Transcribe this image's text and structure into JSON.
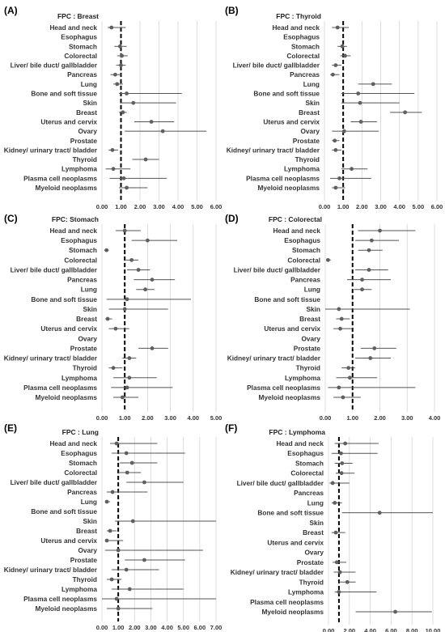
{
  "chart_data": [
    {
      "panel": "(A)",
      "title": "FPC : Breast",
      "type": "forest",
      "xlim": [
        0,
        6
      ],
      "xticks": [
        "0.00",
        "1.00",
        "2.00",
        "3.00",
        "4.00",
        "5.00",
        "6.00"
      ],
      "reference_x": 1,
      "categories": [
        "Head and neck",
        "Esophagus",
        "Stomach",
        "Colorectal",
        "Liver/ bile duct/ gallbladder",
        "Pancreas",
        "Lung",
        "Bone and soft tissue",
        "Skin",
        "Breast",
        "Uterus and cervix",
        "Ovary",
        "Prostate",
        "Kidney/ urinary tract/ bladder",
        "Thyroid",
        "Lymphoma",
        "Plasma cell neoplasms",
        "Myeloid neoplasms"
      ],
      "points": [
        {
          "est": 0.5,
          "lo": 0.3,
          "hi": 1.25
        },
        null,
        {
          "est": 0.95,
          "lo": 0.65,
          "hi": 1.3
        },
        {
          "est": 1.05,
          "lo": 0.8,
          "hi": 1.35
        },
        {
          "est": 1.0,
          "lo": 0.75,
          "hi": 1.25
        },
        {
          "est": 0.7,
          "lo": 0.45,
          "hi": 1.05
        },
        {
          "est": 0.8,
          "lo": 0.6,
          "hi": 1.1
        },
        {
          "est": 1.3,
          "lo": 0.9,
          "hi": 4.2
        },
        {
          "est": 1.65,
          "lo": 0.95,
          "hi": 3.9
        },
        {
          "est": 1.1,
          "lo": 0.9,
          "hi": 1.3
        },
        {
          "est": 2.6,
          "lo": 1.7,
          "hi": 3.8
        },
        {
          "est": 3.2,
          "lo": 1.2,
          "hi": 5.5
        },
        null,
        {
          "est": 0.55,
          "lo": 0.35,
          "hi": 0.85
        },
        {
          "est": 2.3,
          "lo": 1.6,
          "hi": 3.0
        },
        {
          "est": 0.6,
          "lo": 0.2,
          "hi": 1.5
        },
        {
          "est": 1.15,
          "lo": 0.4,
          "hi": 3.4
        },
        {
          "est": 1.3,
          "lo": 0.9,
          "hi": 2.4
        }
      ]
    },
    {
      "panel": "(B)",
      "title": "FPC : Thyroid",
      "type": "forest",
      "xlim": [
        0,
        6
      ],
      "xticks": [
        "0.00",
        "1.00",
        "2.00",
        "3.00",
        "4.00",
        "5.00",
        "6.00"
      ],
      "reference_x": 1,
      "categories": [
        "Head and neck",
        "Esophagus",
        "Stomach",
        "Colorectal",
        "Liver/ bile duct/ gallbladder",
        "Pancreas",
        "Lung",
        "Bone and soft tissue",
        "Skin",
        "Breast",
        "Uterus and cervix",
        "Ovary",
        "Prostate",
        "Kidney/ urinary tract/ bladder",
        "Thyroid",
        "Lymphoma",
        "Plasma cell neoplasms",
        "Myeloid neoplasms"
      ],
      "points": [
        {
          "est": 0.7,
          "lo": 0.4,
          "hi": 1.3
        },
        null,
        {
          "est": 0.95,
          "lo": 0.7,
          "hi": 1.2
        },
        {
          "est": 1.1,
          "lo": 0.85,
          "hi": 1.4
        },
        {
          "est": 0.6,
          "lo": 0.4,
          "hi": 0.9
        },
        {
          "est": 0.45,
          "lo": 0.3,
          "hi": 0.8
        },
        {
          "est": 2.6,
          "lo": 1.8,
          "hi": 3.6
        },
        {
          "est": 1.8,
          "lo": 0.9,
          "hi": 4.8
        },
        {
          "est": 1.9,
          "lo": 0.9,
          "hi": 4.0
        },
        {
          "est": 4.3,
          "lo": 3.5,
          "hi": 5.2
        },
        {
          "est": 1.95,
          "lo": 1.4,
          "hi": 2.8
        },
        {
          "est": 1.05,
          "lo": 0.4,
          "hi": 2.9
        },
        {
          "est": 0.55,
          "lo": 0.4,
          "hi": 0.8
        },
        {
          "est": 0.6,
          "lo": 0.4,
          "hi": 0.9
        },
        null,
        {
          "est": 1.45,
          "lo": 0.9,
          "hi": 2.3
        },
        {
          "est": 0.8,
          "lo": 0.3,
          "hi": 2.5
        },
        {
          "est": 0.6,
          "lo": 0.4,
          "hi": 1.1
        }
      ]
    },
    {
      "panel": "(C)",
      "title": "FPC: Stomach",
      "type": "forest",
      "xlim": [
        0,
        5
      ],
      "xticks": [
        "0.00",
        "1.00",
        "2.00",
        "3.00",
        "4.00",
        "5.00"
      ],
      "reference_x": 1,
      "categories": [
        "Head and neck",
        "Esophagus",
        "Stomach",
        "Colorectal",
        "Liver/ bile duct/ gallbladder",
        "Pancreas",
        "Lung",
        "Bone and soft tissue",
        "Skin",
        "Breast",
        "Uterus and cervix",
        "Ovary",
        "Prostate",
        "Kidney/ urinary tract/ bladder",
        "Thyroid",
        "Lymphoma",
        "Plasma cell neoplasms",
        "Myeloid neoplasms"
      ],
      "points": [
        {
          "est": 1.0,
          "lo": 0.6,
          "hi": 1.7
        },
        {
          "est": 2.0,
          "lo": 1.3,
          "hi": 3.3
        },
        {
          "est": 0.2,
          "lo": 0.1,
          "hi": 0.3
        },
        {
          "est": 1.3,
          "lo": 1.05,
          "hi": 1.6
        },
        {
          "est": 1.6,
          "lo": 1.1,
          "hi": 2.1
        },
        {
          "est": 2.2,
          "lo": 1.4,
          "hi": 3.2
        },
        {
          "est": 1.9,
          "lo": 1.5,
          "hi": 2.3
        },
        {
          "est": 1.1,
          "lo": 0.2,
          "hi": 3.9
        },
        {
          "est": 1.0,
          "lo": 0.3,
          "hi": 2.9
        },
        {
          "est": 0.25,
          "lo": 0.15,
          "hi": 0.45
        },
        {
          "est": 0.6,
          "lo": 0.3,
          "hi": 1.2
        },
        null,
        {
          "est": 2.2,
          "lo": 1.6,
          "hi": 2.9
        },
        {
          "est": 1.2,
          "lo": 0.9,
          "hi": 1.5
        },
        {
          "est": 0.5,
          "lo": 0.3,
          "hi": 0.9
        },
        {
          "est": 1.2,
          "lo": 0.5,
          "hi": 2.4
        },
        {
          "est": 1.1,
          "lo": 0.4,
          "hi": 3.1
        },
        {
          "est": 0.9,
          "lo": 0.5,
          "hi": 1.6
        }
      ]
    },
    {
      "panel": "(D)",
      "title": "FPC : Colorectal",
      "type": "forest",
      "xlim": [
        0,
        4
      ],
      "xticks": [
        "0.00",
        "1.00",
        "2.00",
        "3.00",
        "4.00"
      ],
      "reference_x": 1,
      "categories": [
        "Head and neck",
        "Esophagus",
        "Stomach",
        "Colorectal",
        "Liver/ bile duct/ gallbladder",
        "Pancreas",
        "Lung",
        "Bone and soft tissue",
        "Skin",
        "Breast",
        "Uterus and cervix",
        "Ovary",
        "Prostate",
        "Kidney/ urinary tract/ bladder",
        "Thyroid",
        "Lymphoma",
        "Plasma cell neoplasms",
        "Myeloid neoplasms"
      ],
      "points": [
        {
          "est": 2.0,
          "lo": 1.2,
          "hi": 3.3
        },
        {
          "est": 1.7,
          "lo": 1.1,
          "hi": 2.7
        },
        {
          "est": 1.6,
          "lo": 1.2,
          "hi": 2.1
        },
        {
          "est": 0.1,
          "lo": 0.05,
          "hi": 0.2
        },
        {
          "est": 1.6,
          "lo": 1.1,
          "hi": 2.3
        },
        {
          "est": 1.35,
          "lo": 0.8,
          "hi": 2.4
        },
        {
          "est": 1.35,
          "lo": 1.05,
          "hi": 1.7
        },
        null,
        {
          "est": 0.5,
          "lo": 0.0,
          "hi": 3.1
        },
        {
          "est": 0.6,
          "lo": 0.4,
          "hi": 0.9
        },
        {
          "est": 0.55,
          "lo": 0.3,
          "hi": 1.0
        },
        null,
        {
          "est": 1.8,
          "lo": 1.3,
          "hi": 2.6
        },
        {
          "est": 1.65,
          "lo": 1.1,
          "hi": 2.4
        },
        {
          "est": 0.85,
          "lo": 0.6,
          "hi": 1.1
        },
        {
          "est": 0.9,
          "lo": 0.4,
          "hi": 1.9
        },
        {
          "est": 0.5,
          "lo": 0.1,
          "hi": 3.3
        },
        {
          "est": 0.65,
          "lo": 0.3,
          "hi": 1.3
        }
      ]
    },
    {
      "panel": "(E)",
      "title": "FPC : Lung",
      "type": "forest",
      "xlim": [
        0,
        7
      ],
      "xticks": [
        "0.00",
        "1.00",
        "2.00",
        "3.00",
        "4.00",
        "5.00",
        "6.00",
        "7.00"
      ],
      "reference_x": 1,
      "categories": [
        "Head and neck",
        "Esophagus",
        "Stomach",
        "Colorectal",
        "Liver/ bile duct/ gallbladder",
        "Pancreas",
        "Lung",
        "Bone and soft tissue",
        "Skin",
        "Breast",
        "Uterus and cervix",
        "Ovary",
        "Prostate",
        "Kidney/ urinary tract/ bladder",
        "Thyroid",
        "Lymphoma",
        "Plasma cell neoplasms",
        "Myeloid neoplasms"
      ],
      "points": [
        {
          "est": 0.9,
          "lo": 0.5,
          "hi": 3.4
        },
        {
          "est": 1.5,
          "lo": 0.6,
          "hi": 5.1
        },
        {
          "est": 1.85,
          "lo": 1.1,
          "hi": 3.4
        },
        {
          "est": 1.55,
          "lo": 1.0,
          "hi": 2.4
        },
        {
          "est": 2.6,
          "lo": 1.5,
          "hi": 5.0
        },
        {
          "est": 0.65,
          "lo": 0.3,
          "hi": 2.8
        },
        {
          "est": 0.3,
          "lo": 0.2,
          "hi": 0.5
        },
        null,
        {
          "est": 1.9,
          "lo": 0.8,
          "hi": 7.0
        },
        {
          "est": 0.5,
          "lo": 0.3,
          "hi": 0.9
        },
        {
          "est": 0.3,
          "lo": 0.2,
          "hi": 1.3
        },
        {
          "est": 1.0,
          "lo": 0.2,
          "hi": 6.2
        },
        {
          "est": 2.6,
          "lo": 1.4,
          "hi": 5.1
        },
        {
          "est": 1.5,
          "lo": 0.6,
          "hi": 3.5
        },
        {
          "est": 0.6,
          "lo": 0.3,
          "hi": 1.2
        },
        {
          "est": 1.7,
          "lo": 0.6,
          "hi": 5.0
        },
        {
          "est": 0.9,
          "lo": 0.0,
          "hi": 7.0
        },
        {
          "est": 1.0,
          "lo": 0.3,
          "hi": 3.1
        }
      ]
    },
    {
      "panel": "(F)",
      "title": "FPC : Lymphoma",
      "type": "forest",
      "xlim": [
        0,
        10
      ],
      "xticks": [
        "0.00",
        "2.00",
        "4.00",
        "6.00",
        "8.00",
        "10.00"
      ],
      "reference_x": 1,
      "categories": [
        "Head and neck",
        "Esophagus",
        "Stomach",
        "Colorectal",
        "Liver/ bile duct/ gallbladder",
        "Pancreas",
        "Lung",
        "Bone and soft tissue",
        "Skin",
        "Breast",
        "Uterus and cervix",
        "Ovary",
        "Prostate",
        "Kidney/ urinary tract/ bladder",
        "Thyroid",
        "Lymphoma",
        "Plasma cell neoplasms",
        "Myeloid neoplasms"
      ],
      "points": [
        {
          "est": 1.6,
          "lo": 0.6,
          "hi": 4.8
        },
        {
          "est": 1.2,
          "lo": 0.3,
          "hi": 4.7
        },
        {
          "est": 1.3,
          "lo": 0.6,
          "hi": 2.3
        },
        {
          "est": 1.25,
          "lo": 0.7,
          "hi": 2.5
        },
        {
          "est": 0.4,
          "lo": 0.1,
          "hi": 2.0
        },
        null,
        {
          "est": 0.6,
          "lo": 0.3,
          "hi": 1.3
        },
        {
          "est": 4.9,
          "lo": 1.3,
          "hi": 10.0
        },
        null,
        {
          "est": 0.7,
          "lo": 0.3,
          "hi": 1.6
        },
        null,
        null,
        {
          "est": 0.8,
          "lo": 0.4,
          "hi": 1.7
        },
        {
          "est": 1.1,
          "lo": 0.5,
          "hi": 2.6
        },
        {
          "est": 1.8,
          "lo": 1.0,
          "hi": 2.6
        },
        {
          "est": 1.0,
          "lo": 0.6,
          "hi": 4.6
        },
        null,
        {
          "est": 6.4,
          "lo": 2.6,
          "hi": 9.9
        }
      ]
    }
  ]
}
